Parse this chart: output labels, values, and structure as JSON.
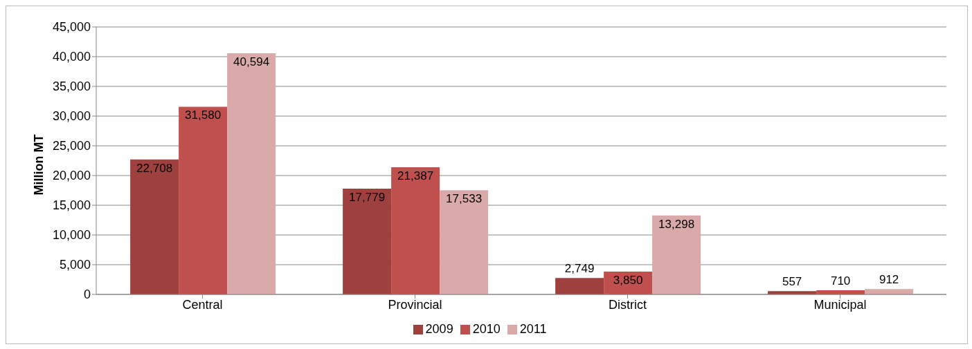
{
  "chart_data": {
    "type": "bar",
    "ylabel": "Million MT",
    "categories": [
      "Central",
      "Provincial",
      "District",
      "Municipal"
    ],
    "series": [
      {
        "name": "2009",
        "color": "#9e413e",
        "values": [
          22708,
          17779,
          2749,
          557
        ],
        "value_labels": [
          "22,708",
          "17,779",
          "2,749",
          "557"
        ]
      },
      {
        "name": "2010",
        "color": "#c0504d",
        "values": [
          31580,
          21387,
          3850,
          710
        ],
        "value_labels": [
          "31,580",
          "21,387",
          "3,850",
          "710"
        ]
      },
      {
        "name": "2011",
        "color": "#d9aaa9",
        "values": [
          40594,
          17533,
          13298,
          912
        ],
        "value_labels": [
          "40,594",
          "17,533",
          "13,298",
          "912"
        ]
      }
    ],
    "ylim": [
      0,
      45000
    ],
    "yticks": [
      {
        "value": 0,
        "label": "0"
      },
      {
        "value": 5000,
        "label": "5,000"
      },
      {
        "value": 10000,
        "label": "10,000"
      },
      {
        "value": 15000,
        "label": "15,000"
      },
      {
        "value": 20000,
        "label": "20,000"
      },
      {
        "value": 25000,
        "label": "25,000"
      },
      {
        "value": 30000,
        "label": "30,000"
      },
      {
        "value": 35000,
        "label": "35,000"
      },
      {
        "value": 40000,
        "label": "40,000"
      },
      {
        "value": 45000,
        "label": "45,000"
      }
    ],
    "grid": "y",
    "legend": "bottom"
  }
}
